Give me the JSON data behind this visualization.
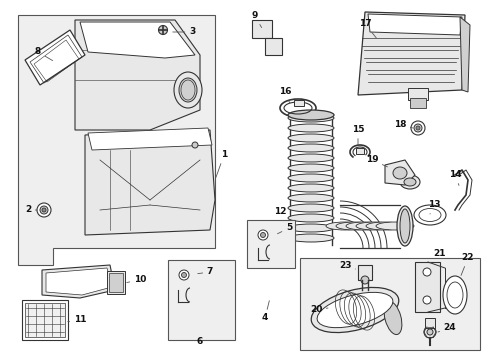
{
  "background_color": "#ffffff",
  "fig_width": 4.89,
  "fig_height": 3.6,
  "dpi": 100,
  "line_color": "#333333",
  "label_color": "#111111",
  "box_bg": "#efefef",
  "part_bg": "#e8e8e8",
  "white": "#ffffff"
}
